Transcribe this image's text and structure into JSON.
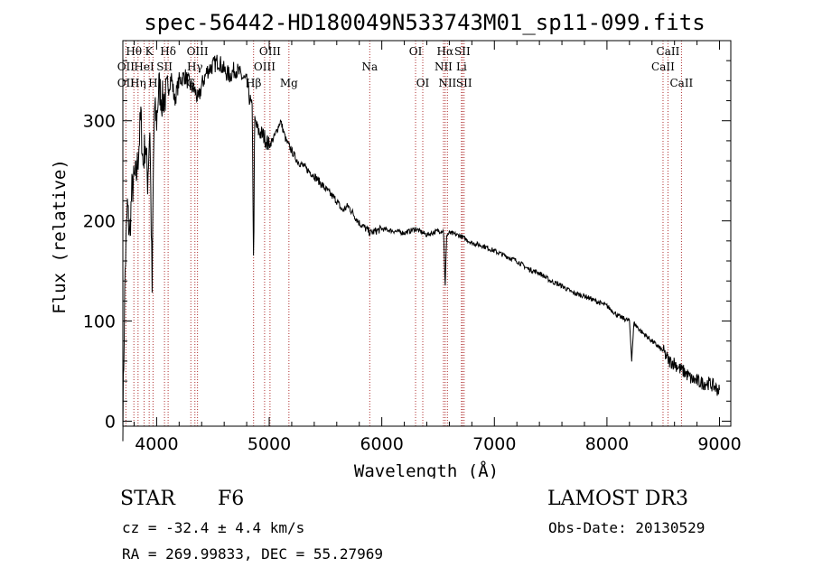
{
  "chart_data": {
    "type": "line",
    "title": "spec-56442-HD180049N533743M01_sp11-099.fits",
    "xlabel": "Wavelength (Å)",
    "ylabel": "Flux (relative)",
    "xlim": [
      3700,
      9100
    ],
    "ylim": [
      -5,
      380
    ],
    "xticks": [
      4000,
      5000,
      6000,
      7000,
      8000,
      9000
    ],
    "yticks": [
      0,
      100,
      200,
      300
    ],
    "series": [
      {
        "name": "flux",
        "x": [
          3700,
          3720,
          3740,
          3760,
          3780,
          3800,
          3820,
          3840,
          3860,
          3880,
          3900,
          3920,
          3940,
          3960,
          3970,
          3980,
          4000,
          4020,
          4050,
          4080,
          4100,
          4130,
          4160,
          4200,
          4250,
          4300,
          4340,
          4370,
          4400,
          4450,
          4500,
          4550,
          4600,
          4650,
          4700,
          4750,
          4800,
          4830,
          4850,
          4861,
          4870,
          4900,
          4950,
          5000,
          5050,
          5100,
          5150,
          5200,
          5250,
          5300,
          5400,
          5500,
          5600,
          5650,
          5700,
          5800,
          5900,
          6000,
          6100,
          6200,
          6300,
          6400,
          6500,
          6550,
          6563,
          6575,
          6600,
          6700,
          6800,
          6900,
          7000,
          7100,
          7200,
          7300,
          7400,
          7500,
          7600,
          7700,
          7800,
          7900,
          8000,
          8100,
          8200,
          8220,
          8240,
          8300,
          8400,
          8500,
          8550,
          8600,
          8650,
          8700,
          8750,
          8800,
          8850,
          8900,
          8950,
          9000
        ],
        "y": [
          0,
          150,
          215,
          185,
          230,
          240,
          245,
          270,
          305,
          255,
          280,
          240,
          295,
          130,
          240,
          310,
          300,
          335,
          320,
          325,
          330,
          345,
          320,
          340,
          345,
          335,
          330,
          320,
          335,
          350,
          355,
          360,
          350,
          345,
          352,
          345,
          338,
          320,
          310,
          145,
          300,
          290,
          285,
          275,
          285,
          300,
          280,
          270,
          260,
          255,
          245,
          232,
          220,
          210,
          215,
          198,
          188,
          192,
          190,
          188,
          192,
          186,
          190,
          190,
          130,
          185,
          188,
          185,
          178,
          175,
          170,
          165,
          160,
          152,
          148,
          140,
          135,
          128,
          125,
          120,
          115,
          105,
          100,
          62,
          98,
          90,
          80,
          70,
          60,
          58,
          52,
          48,
          42,
          40,
          38,
          38,
          35,
          30
        ]
      }
    ],
    "spectral_lines": [
      {
        "label": "Hθ",
        "wavelength": 3798,
        "row": 0
      },
      {
        "label": "OII",
        "wavelength": 3727,
        "row": 1
      },
      {
        "label": "OII",
        "wavelength": 3727,
        "row": 2
      },
      {
        "label": "K",
        "wavelength": 3934,
        "row": 0
      },
      {
        "label": "HeI",
        "wavelength": 3889,
        "row": 1
      },
      {
        "label": "Hη",
        "wavelength": 3835,
        "row": 2
      },
      {
        "label": "Hδ",
        "wavelength": 4102,
        "row": 0
      },
      {
        "label": "SII",
        "wavelength": 4070,
        "row": 1
      },
      {
        "label": "H",
        "wavelength": 3968,
        "row": 2
      },
      {
        "label": "OIII",
        "wavelength": 4363,
        "row": 0
      },
      {
        "label": "Hγ",
        "wavelength": 4340,
        "row": 1
      },
      {
        "label": "G",
        "wavelength": 4304,
        "row": 2
      },
      {
        "label": "OIII",
        "wavelength": 5007,
        "row": 0
      },
      {
        "label": "OIII",
        "wavelength": 4959,
        "row": 1
      },
      {
        "label": "Hβ",
        "wavelength": 4861,
        "row": 2
      },
      {
        "label": "Mg",
        "wavelength": 5175,
        "row": 2
      },
      {
        "label": "Na",
        "wavelength": 5893,
        "row": 1
      },
      {
        "label": "OI",
        "wavelength": 6300,
        "row": 0
      },
      {
        "label": "OI",
        "wavelength": 6364,
        "row": 2
      },
      {
        "label": "Hα",
        "wavelength": 6563,
        "row": 0
      },
      {
        "label": "NII",
        "wavelength": 6548,
        "row": 1
      },
      {
        "label": "NII",
        "wavelength": 6583,
        "row": 2
      },
      {
        "label": "SII",
        "wavelength": 6716,
        "row": 0
      },
      {
        "label": "Li",
        "wavelength": 6708,
        "row": 1
      },
      {
        "label": "SII",
        "wavelength": 6731,
        "row": 2
      },
      {
        "label": "CaII",
        "wavelength": 8542,
        "row": 0
      },
      {
        "label": "CaII",
        "wavelength": 8498,
        "row": 1
      },
      {
        "label": "CaII",
        "wavelength": 8662,
        "row": 2
      }
    ]
  },
  "info": {
    "class_label": "STAR",
    "subclass": "F6",
    "survey": "LAMOST DR3",
    "redshift": "cz = -32.4 ± 4.4 km/s",
    "obs_date": "Obs-Date: 20130529",
    "coords": "RA = 269.99833, DEC =  55.27969"
  },
  "colors": {
    "line_marker": "#b03030",
    "spectrum": "#000000"
  }
}
